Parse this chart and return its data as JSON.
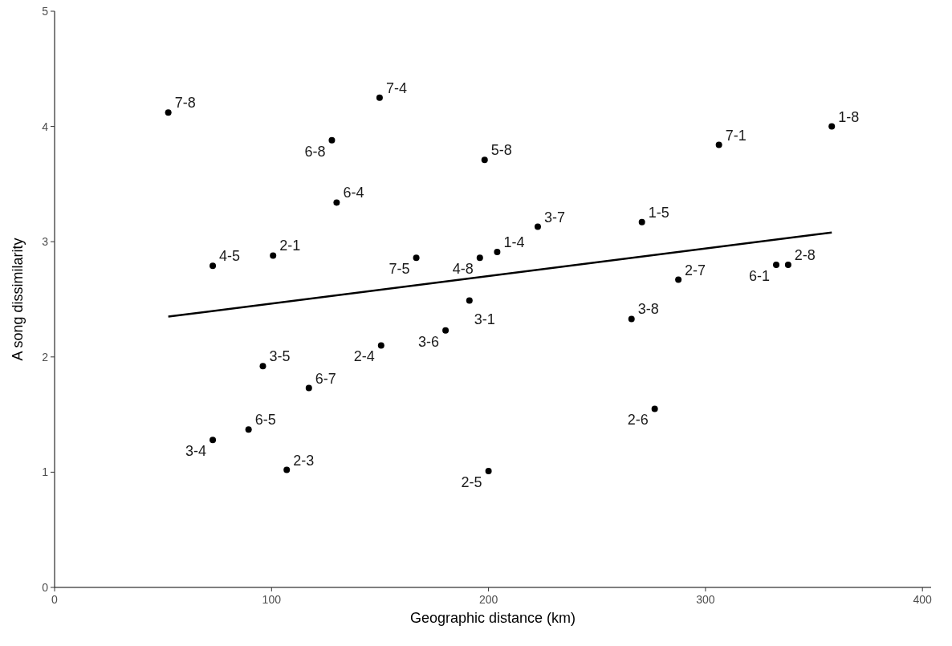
{
  "chart_data": {
    "type": "scatter",
    "xlabel": "Geographic distance (km)",
    "ylabel": "A song dissimilarity",
    "xlim": [
      0,
      404
    ],
    "ylim": [
      0,
      5
    ],
    "xticks": [
      0,
      100,
      200,
      300,
      400
    ],
    "yticks": [
      0,
      1,
      2,
      3,
      4,
      5
    ],
    "grid": false,
    "series": [
      {
        "marker": "circle",
        "color": "#000000",
        "x": [
          52.4,
          149.8,
          127.8,
          198.2,
          130.0,
          72.9,
          100.7,
          166.7,
          196.0,
          204.0,
          222.7,
          270.7,
          306.2,
          358.2,
          287.5,
          332.6,
          338.1,
          265.9,
          191.2,
          180.2,
          150.5,
          96.0,
          117.2,
          89.4,
          72.9,
          107.0,
          200.0,
          276.6
        ],
        "values": [
          4.12,
          4.25,
          3.88,
          3.71,
          3.34,
          2.79,
          2.88,
          2.86,
          2.86,
          2.91,
          3.13,
          3.17,
          3.84,
          4.0,
          2.67,
          2.8,
          2.8,
          2.33,
          2.49,
          2.23,
          2.1,
          1.92,
          1.73,
          1.37,
          1.28,
          1.02,
          1.01,
          1.55
        ]
      },
      {
        "type": "line",
        "color": "#000000",
        "x": [
          52.4,
          358.2
        ],
        "values": [
          2.35,
          3.08
        ]
      }
    ],
    "annotations": [
      {
        "text": "7-8",
        "x": 52.4,
        "y": 4.12
      },
      {
        "text": "7-4",
        "x": 149.8,
        "y": 4.25
      },
      {
        "text": "6-8",
        "x": 127.8,
        "y": 3.88
      },
      {
        "text": "5-8",
        "x": 198.2,
        "y": 3.71
      },
      {
        "text": "6-4",
        "x": 130.0,
        "y": 3.34
      },
      {
        "text": "4-5",
        "x": 72.9,
        "y": 2.79
      },
      {
        "text": "2-1",
        "x": 100.7,
        "y": 2.88
      },
      {
        "text": "7-5",
        "x": 166.7,
        "y": 2.86
      },
      {
        "text": "4-8",
        "x": 196.0,
        "y": 2.86
      },
      {
        "text": "1-4",
        "x": 204.0,
        "y": 2.91
      },
      {
        "text": "3-7",
        "x": 222.7,
        "y": 3.13
      },
      {
        "text": "1-5",
        "x": 270.7,
        "y": 3.17
      },
      {
        "text": "7-1",
        "x": 306.2,
        "y": 3.84
      },
      {
        "text": "1-8",
        "x": 358.2,
        "y": 4.0
      },
      {
        "text": "2-7",
        "x": 287.5,
        "y": 2.67
      },
      {
        "text": "6-1",
        "x": 332.6,
        "y": 2.8
      },
      {
        "text": "2-8",
        "x": 338.1,
        "y": 2.8
      },
      {
        "text": "3-8",
        "x": 265.9,
        "y": 2.33
      },
      {
        "text": "3-1",
        "x": 191.2,
        "y": 2.49
      },
      {
        "text": "3-6",
        "x": 180.2,
        "y": 2.23
      },
      {
        "text": "2-4",
        "x": 150.5,
        "y": 2.1
      },
      {
        "text": "3-5",
        "x": 96.0,
        "y": 1.92
      },
      {
        "text": "6-7",
        "x": 117.2,
        "y": 1.73
      },
      {
        "text": "6-5",
        "x": 89.4,
        "y": 1.37
      },
      {
        "text": "3-4",
        "x": 72.9,
        "y": 1.28
      },
      {
        "text": "2-3",
        "x": 107.0,
        "y": 1.02
      },
      {
        "text": "2-5",
        "x": 200.0,
        "y": 1.01
      },
      {
        "text": "2-6",
        "x": 276.6,
        "y": 1.55
      }
    ]
  }
}
